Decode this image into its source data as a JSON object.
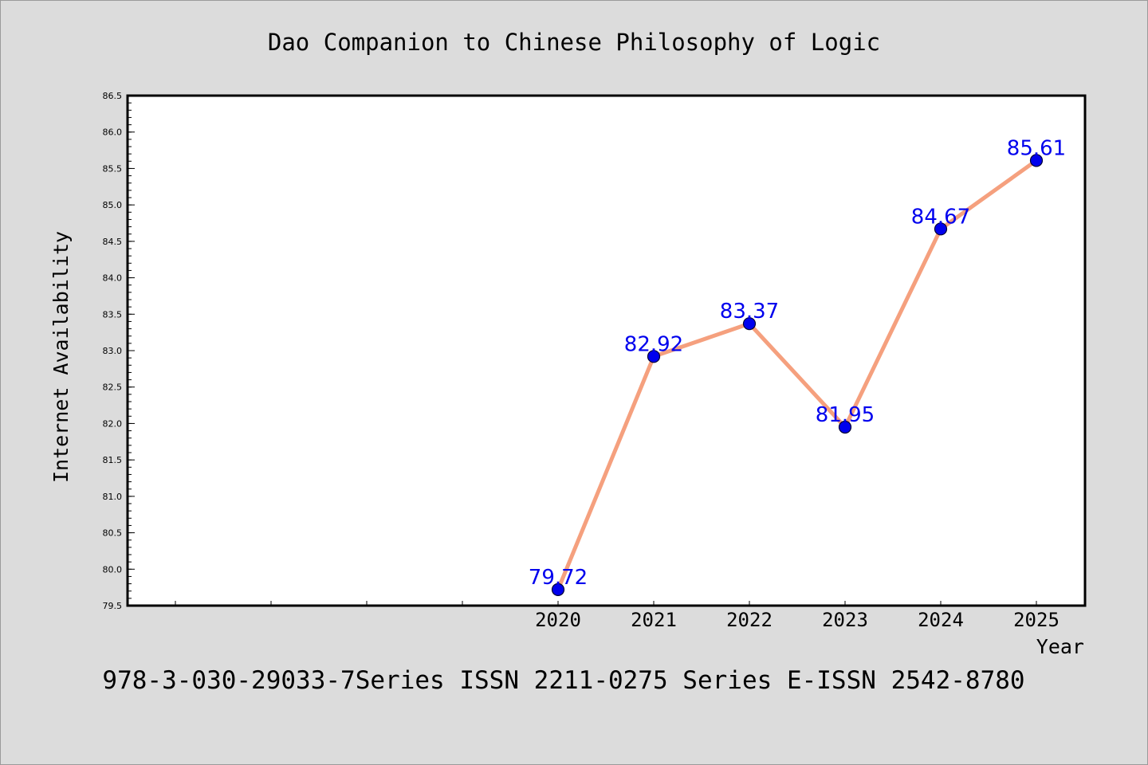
{
  "chart_data": {
    "type": "line",
    "title": "Dao Companion to Chinese Philosophy of Logic",
    "xlabel": "Year",
    "ylabel": "Internet Availability",
    "categories": [
      "2020",
      "2021",
      "2022",
      "2023",
      "2024",
      "2025"
    ],
    "series": [
      {
        "values": [
          79.72,
          82.92,
          83.37,
          81.95,
          84.67,
          85.61
        ],
        "labels": [
          "79.72",
          "82.92",
          "83.37",
          "81.95",
          "84.67",
          "85.61"
        ]
      }
    ],
    "ylim": [
      79.5,
      86.5
    ],
    "yticks": [
      79.5,
      80.0,
      80.5,
      81.0,
      81.5,
      82.0,
      82.5,
      83.0,
      83.5,
      84.0,
      84.5,
      85.0,
      85.5,
      86.0,
      86.5
    ],
    "ytick_labels": [
      "79.5",
      "80.0",
      "80.5",
      "81.0",
      "81.5",
      "82.0",
      "82.5",
      "83.0",
      "83.5",
      "84.0",
      "84.5",
      "85.0",
      "85.5",
      "86.0",
      "86.5"
    ],
    "grid": false,
    "colors": {
      "line": "#f5a07e",
      "marker_fill": "#0000ee",
      "marker_stroke": "#000033",
      "data_label": "#0000ee",
      "background": "#dcdcdc",
      "plot_background": "#ffffff"
    }
  },
  "footer": "978-3-030-29033-7Series ISSN 2211-0275 Series E-ISSN 2542-8780"
}
